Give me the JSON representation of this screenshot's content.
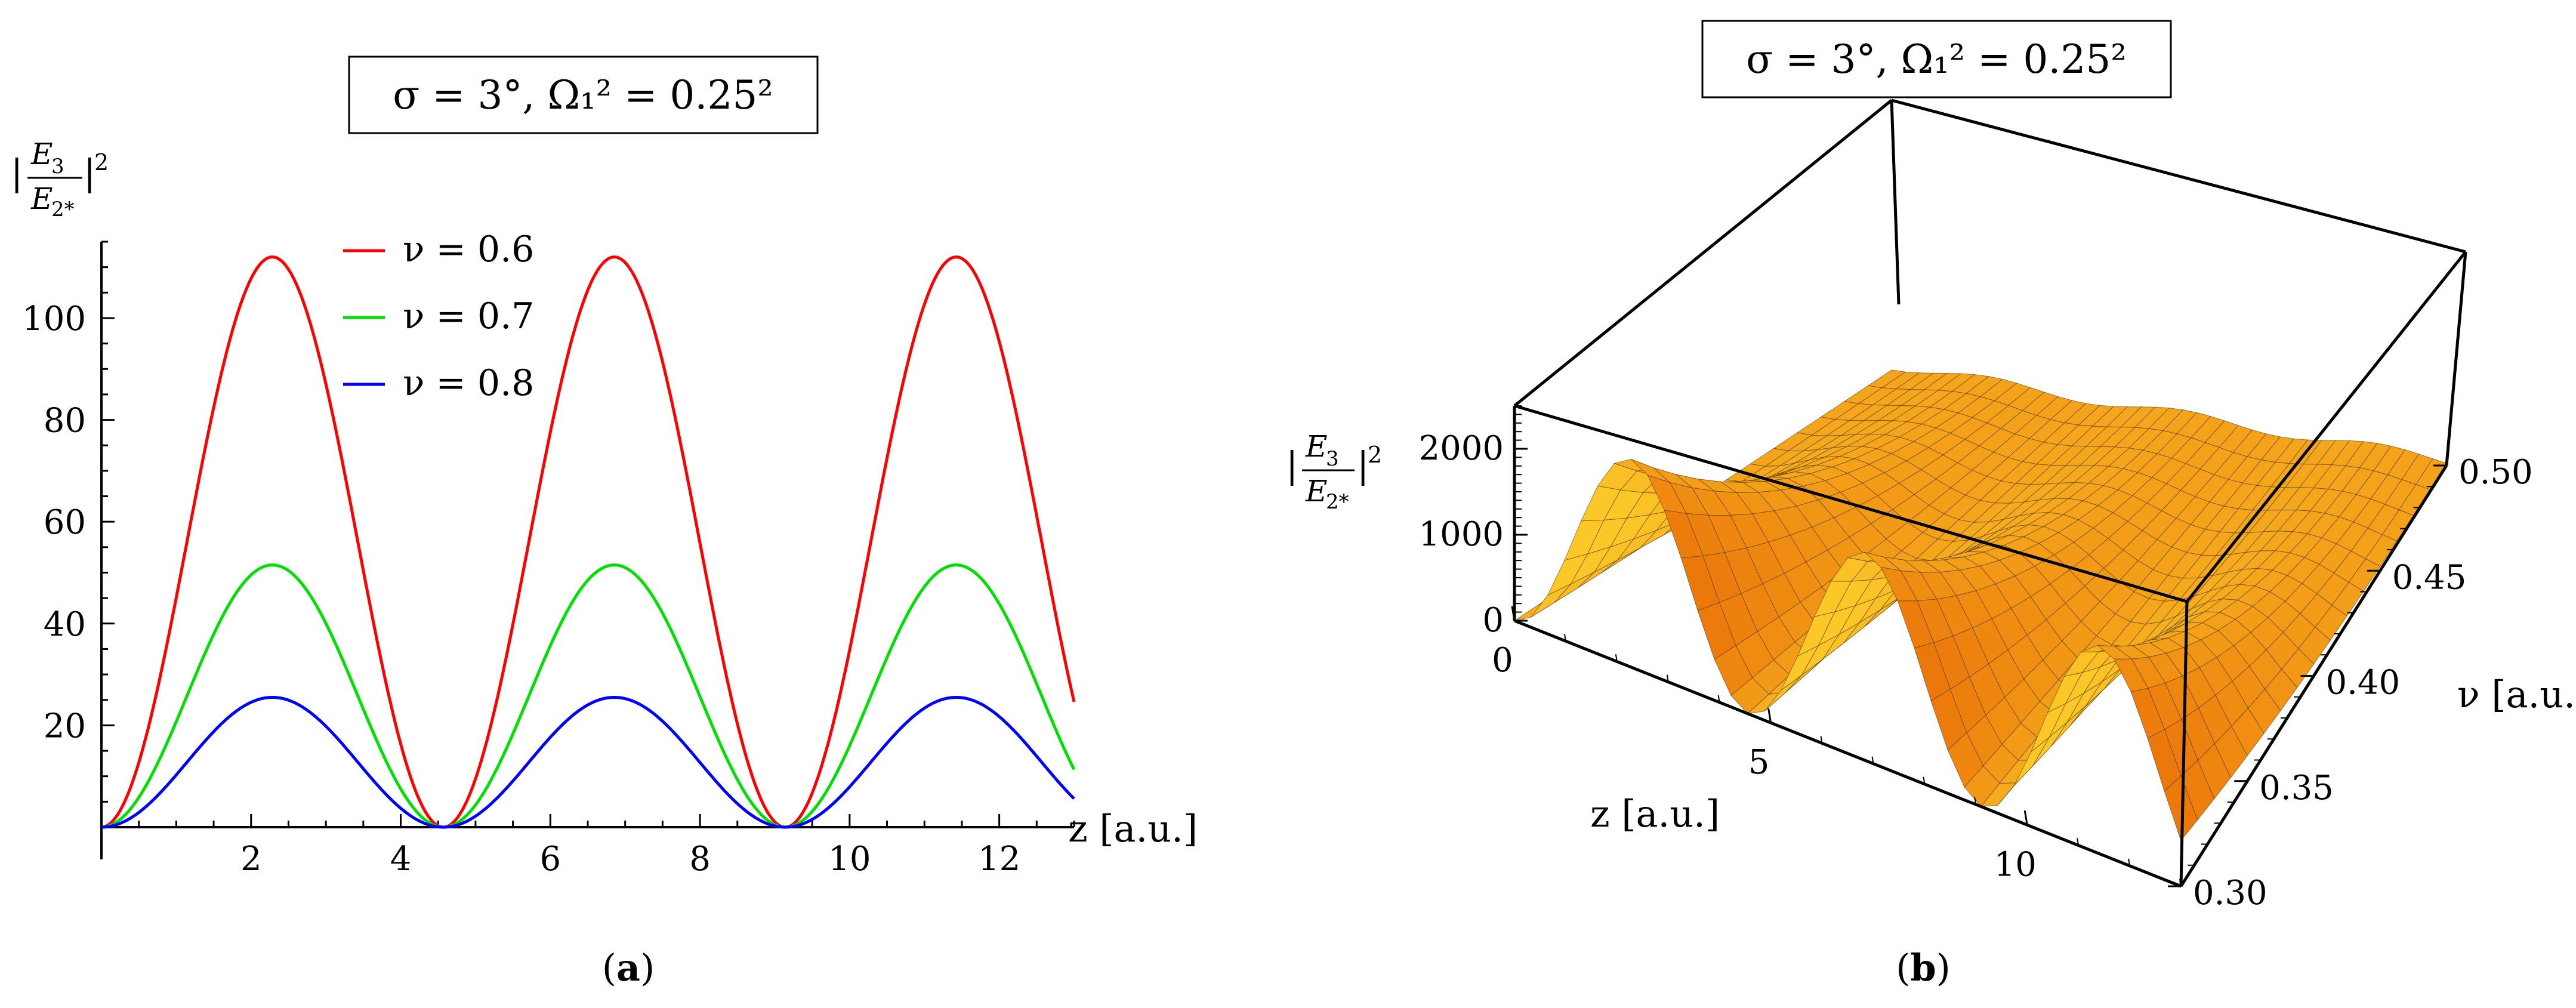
{
  "panel_a": {
    "title": "σ = 3°, Ω₁² = 0.25²",
    "ylabel_num": "E",
    "ylabel_num_sub": "3",
    "ylabel_den": "E",
    "ylabel_den_sub": "2*",
    "xlabel": "z [a.u.]",
    "caption_letter": "a"
  },
  "panel_b": {
    "title": "σ = 3°, Ω₁² = 0.25²",
    "zlabel_num": "E",
    "zlabel_num_sub": "3",
    "zlabel_den": "E",
    "zlabel_den_sub": "2*",
    "xlabel": "z [a.u.]",
    "ylabel": "ν [a.u.]",
    "caption_letter": "b",
    "surface_color": "#f7a51c"
  },
  "chart_data": [
    {
      "type": "line",
      "title": "σ = 3°, Ω₁² = 0.25²",
      "xlabel": "z [a.u.]",
      "ylabel": "|E3/E2*|²",
      "xlim": [
        0,
        13
      ],
      "ylim": [
        0,
        115
      ],
      "x_ticks": [
        2,
        4,
        6,
        8,
        10,
        12
      ],
      "y_ticks": [
        20,
        40,
        60,
        80,
        100
      ],
      "legend_position": "top-left",
      "series": [
        {
          "name": "ν = 0.6",
          "color": "#ff0000",
          "peak": 112,
          "period": 4.57,
          "end_value": 27.5
        },
        {
          "name": "ν = 0.7",
          "color": "#00e000",
          "peak": 51.5,
          "period": 4.57,
          "end_value": 12.5
        },
        {
          "name": "ν = 0.8",
          "color": "#0000ff",
          "peak": 25.5,
          "period": 4.57,
          "end_value": 6.5
        }
      ]
    },
    {
      "type": "surface3d",
      "title": "σ = 3°, Ω₁² = 0.25²",
      "xlabel": "z [a.u.]",
      "ylabel": "ν [a.u.]",
      "zlabel": "|E3/E2*|²",
      "xlim": [
        0,
        13
      ],
      "ylim": [
        0.3,
        0.5
      ],
      "zlim": [
        0,
        2500
      ],
      "x_ticks": [
        0,
        5,
        10
      ],
      "y_ticks": [
        0.3,
        0.35,
        0.4,
        0.45,
        0.5
      ],
      "z_ticks": [
        0,
        1000,
        2000
      ]
    }
  ]
}
